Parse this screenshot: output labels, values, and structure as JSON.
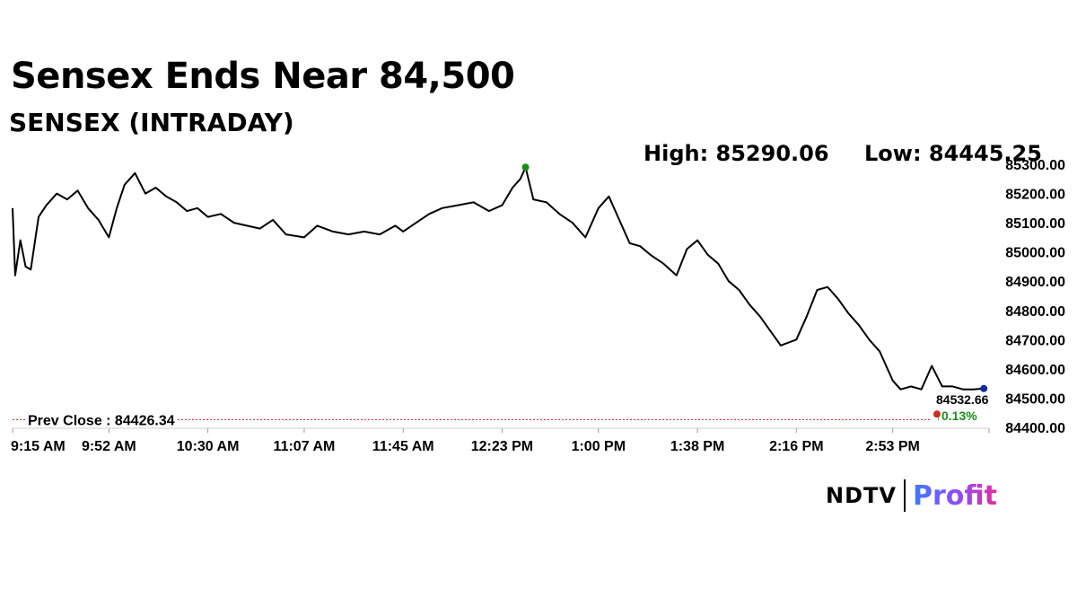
{
  "headline": "Sensex Ends Near 84,500",
  "chart_data": {
    "type": "line",
    "title": "SENSEX (INTRADAY)",
    "high_label": "High: 85290.06",
    "low_label": "Low: 84445.25",
    "high_value": 85290.06,
    "low_value": 84445.25,
    "prev_close_label": "Prev Close : 84426.34",
    "prev_close": 84426.34,
    "last_value": 84532.66,
    "last_label": "84532.66",
    "change_label": "0.13%",
    "change_arrow": "↑",
    "ylim": [
      84400,
      85300
    ],
    "y_ticks": [
      "85300.00",
      "85200.00",
      "85100.00",
      "85000.00",
      "84900.00",
      "84800.00",
      "84700.00",
      "84600.00",
      "84500.00",
      "84400.00"
    ],
    "x_ticks": [
      "9:15 AM",
      "9:52 AM",
      "10:30 AM",
      "11:07 AM",
      "11:45 AM",
      "12:23 PM",
      "1:00 PM",
      "1:38 PM",
      "2:16 PM",
      "2:53 PM"
    ],
    "x_range": [
      "9:15 AM",
      "3:30 PM"
    ],
    "series": [
      {
        "x": [
          "9:15 AM",
          "9:16 AM",
          "9:18 AM",
          "9:20 AM",
          "9:22 AM",
          "9:25 AM",
          "9:28 AM",
          "9:32 AM",
          "9:36 AM",
          "9:40 AM",
          "9:44 AM",
          "9:48 AM",
          "9:52 AM",
          "9:55 AM",
          "9:58 AM",
          "10:02 AM",
          "10:06 AM",
          "10:10 AM",
          "10:14 AM",
          "10:18 AM",
          "10:22 AM",
          "10:26 AM",
          "10:30 AM",
          "10:35 AM",
          "10:40 AM",
          "10:45 AM",
          "10:50 AM",
          "10:55 AM",
          "11:00 AM",
          "11:07 AM",
          "11:12 AM",
          "11:18 AM",
          "11:24 AM",
          "11:30 AM",
          "11:36 AM",
          "11:42 AM",
          "11:45 AM",
          "11:50 AM",
          "11:55 AM",
          "12:00 PM",
          "12:06 PM",
          "12:12 PM",
          "12:18 PM",
          "12:23 PM",
          "12:27 PM",
          "12:30 PM",
          "12:32 PM",
          "12:35 PM",
          "12:40 PM",
          "12:45 PM",
          "12:50 PM",
          "12:55 PM",
          "1:00 PM",
          "1:04 PM",
          "1:08 PM",
          "1:12 PM",
          "1:16 PM",
          "1:20 PM",
          "1:25 PM",
          "1:30 PM",
          "1:34 PM",
          "1:38 PM",
          "1:42 PM",
          "1:46 PM",
          "1:50 PM",
          "1:54 PM",
          "1:58 PM",
          "2:02 PM",
          "2:06 PM",
          "2:10 PM",
          "2:16 PM",
          "2:20 PM",
          "2:24 PM",
          "2:28 PM",
          "2:32 PM",
          "2:36 PM",
          "2:40 PM",
          "2:44 PM",
          "2:48 PM",
          "2:53 PM",
          "2:56 PM",
          "3:00 PM",
          "3:04 PM",
          "3:08 PM",
          "3:12 PM",
          "3:16 PM",
          "3:20 PM",
          "3:24 PM",
          "3:28 PM"
        ],
        "values": [
          85150,
          84920,
          85040,
          84950,
          84940,
          85120,
          85160,
          85200,
          85180,
          85210,
          85150,
          85110,
          85050,
          85150,
          85230,
          85270,
          85200,
          85220,
          85190,
          85170,
          85140,
          85150,
          85120,
          85130,
          85100,
          85090,
          85080,
          85110,
          85060,
          85050,
          85090,
          85070,
          85060,
          85070,
          85060,
          85090,
          85070,
          85100,
          85130,
          85150,
          85160,
          85170,
          85140,
          85160,
          85220,
          85250,
          85290,
          85180,
          85170,
          85130,
          85100,
          85050,
          85150,
          85190,
          85110,
          85030,
          85020,
          84990,
          84960,
          84920,
          85010,
          85040,
          84990,
          84960,
          84900,
          84870,
          84820,
          84780,
          84730,
          84680,
          84700,
          84780,
          84870,
          84880,
          84840,
          84790,
          84750,
          84700,
          84660,
          84560,
          84530,
          84540,
          84530,
          84610,
          84540,
          84540,
          84530,
          84530,
          84532.66
        ]
      }
    ],
    "markers": [
      {
        "x": "12:32 PM",
        "value": 85290.06,
        "color": "#1a8c1a"
      },
      {
        "x": "3:10 PM",
        "value": 84445.25,
        "color": "#e02020"
      },
      {
        "x": "3:28 PM",
        "value": 84532.66,
        "color": "#1a2aa0"
      }
    ],
    "colors": {
      "line": "#000000",
      "prev_close": "#cc2222",
      "change": "#1a8c1a",
      "axis": "#cccccc"
    },
    "grid": false,
    "legend": "none"
  },
  "brand": {
    "name": "NDTV",
    "product": "Profit"
  }
}
